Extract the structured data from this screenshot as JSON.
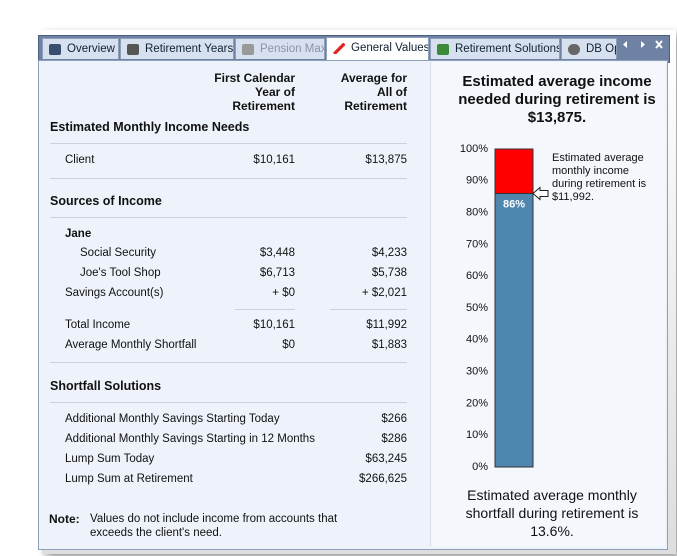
{
  "tabs": [
    "Overview",
    "Retirement Years",
    "Pension Max",
    "General Values",
    "Retirement Solutions",
    "DB Op"
  ],
  "table": {
    "headers": [
      [
        "First Calendar",
        "Year of",
        "Retirement"
      ],
      [
        "Average for",
        "All of",
        "Retirement"
      ]
    ],
    "income_needs": {
      "title": "Estimated Monthly Income Needs",
      "rows": [
        {
          "label": "Client",
          "values": [
            "$10,161",
            "$13,875"
          ]
        }
      ]
    },
    "sources": {
      "title": "Sources of Income",
      "person": "Jane",
      "rows": [
        {
          "label": "Social Security",
          "values": [
            "$3,448",
            "$4,233"
          ]
        },
        {
          "label": "Joe's Tool Shop",
          "values": [
            "$6,713",
            "$5,738"
          ]
        },
        {
          "label": "Savings Account(s)",
          "values": [
            "+ $0",
            "+ $2,021"
          ]
        },
        {
          "label": "Total Income",
          "values": [
            "$10,161",
            "$11,992"
          ]
        },
        {
          "label": "Average Monthly Shortfall",
          "values": [
            "$0",
            "$1,883"
          ]
        }
      ]
    },
    "solutions": {
      "title": "Shortfall Solutions",
      "rows": [
        {
          "label": "Additional Monthly Savings Starting Today",
          "value": "$266"
        },
        {
          "label": "Additional Monthly Savings Starting in 12 Months",
          "value": "$286"
        },
        {
          "label": "Lump Sum Today",
          "value": "$63,245"
        },
        {
          "label": "Lump Sum at Retirement",
          "value": "$266,625"
        }
      ]
    },
    "note": {
      "label": "Note:",
      "text": "Values do not include income from accounts that exceeds the client's need."
    }
  },
  "chart": {
    "type": "bar",
    "title": "Estimated average income needed during retirement is $13,875.",
    "values": [
      86
    ],
    "value_labels": [
      "86%"
    ],
    "color": "#4f86b0",
    "shortfall_color": "#ff0000",
    "ylim": [
      0,
      100
    ],
    "yticks": [
      {
        "value": 0,
        "label": "0%"
      },
      {
        "value": 10,
        "label": "10%"
      },
      {
        "value": 20,
        "label": "20%"
      },
      {
        "value": 30,
        "label": "30%"
      },
      {
        "value": 40,
        "label": "40%"
      },
      {
        "value": 50,
        "label": "50%"
      },
      {
        "value": 60,
        "label": "60%"
      },
      {
        "value": 70,
        "label": "70%"
      },
      {
        "value": 80,
        "label": "80%"
      },
      {
        "value": 90,
        "label": "90%"
      },
      {
        "value": 100,
        "label": "100%"
      }
    ],
    "annotation": "Estimated average monthly income during retirement is $11,992.",
    "footer": "Estimated average monthly shortfall during retirement is 13.6%."
  }
}
